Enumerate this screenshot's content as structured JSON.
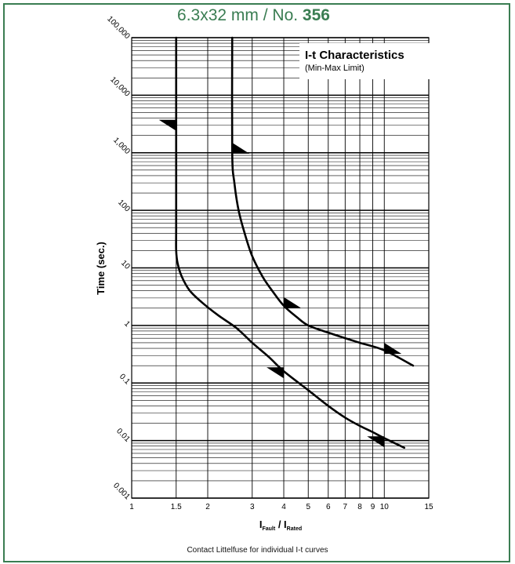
{
  "header": {
    "title_prefix": "6.3x32 mm / No. ",
    "title_number": "356"
  },
  "footer": {
    "note": "Contact Littelfuse for individual I-t curves"
  },
  "colors": {
    "border": "#3a7d52",
    "title": "#3a7d52",
    "ink": "#000000"
  },
  "chart_data": {
    "type": "line",
    "title": "I-t Characteristics",
    "subtitle": "(Min-Max Limit)",
    "xlabel": "I_Fault / I_Rated",
    "xlabel_main": "I",
    "xlabel_sub1": "Fault",
    "xlabel_sep": " / I",
    "xlabel_sub2": "Rated",
    "ylabel": "Time (sec.)",
    "x_scale": "log",
    "y_scale": "log",
    "xlim": [
      1,
      15
    ],
    "ylim": [
      0.001,
      100000
    ],
    "x_ticks": [
      {
        "value": 1,
        "label": "1"
      },
      {
        "value": 1.5,
        "label": "1.5"
      },
      {
        "value": 2,
        "label": "2"
      },
      {
        "value": 3,
        "label": "3"
      },
      {
        "value": 4,
        "label": "4"
      },
      {
        "value": 5,
        "label": "5"
      },
      {
        "value": 6,
        "label": "6"
      },
      {
        "value": 7,
        "label": "7"
      },
      {
        "value": 8,
        "label": "8"
      },
      {
        "value": 9,
        "label": "9"
      },
      {
        "value": 10,
        "label": "10"
      },
      {
        "value": 15,
        "label": "15"
      }
    ],
    "y_ticks": [
      {
        "value": 0.001,
        "label": "0.001"
      },
      {
        "value": 0.01,
        "label": "0.01"
      },
      {
        "value": 0.1,
        "label": "0.1"
      },
      {
        "value": 1,
        "label": "1"
      },
      {
        "value": 10,
        "label": "10"
      },
      {
        "value": 100,
        "label": "100"
      },
      {
        "value": 1000,
        "label": "1,000"
      },
      {
        "value": 10000,
        "label": "10,000"
      },
      {
        "value": 100000,
        "label": "100,000"
      }
    ],
    "grid": true,
    "legend_position": "top-right",
    "series": [
      {
        "points": [
          {
            "x": 1.5,
            "y": 100000
          },
          {
            "x": 1.5,
            "y": 1000
          },
          {
            "x": 1.5,
            "y": 50
          },
          {
            "x": 1.5,
            "y": 20
          },
          {
            "x": 1.52,
            "y": 12
          },
          {
            "x": 1.58,
            "y": 7
          },
          {
            "x": 1.7,
            "y": 4
          },
          {
            "x": 1.9,
            "y": 2.5
          },
          {
            "x": 2.2,
            "y": 1.5
          },
          {
            "x": 2.6,
            "y": 0.9
          },
          {
            "x": 3,
            "y": 0.5
          },
          {
            "x": 3.5,
            "y": 0.28
          },
          {
            "x": 4,
            "y": 0.16
          },
          {
            "x": 5,
            "y": 0.075
          },
          {
            "x": 6,
            "y": 0.04
          },
          {
            "x": 7,
            "y": 0.025
          },
          {
            "x": 8,
            "y": 0.018
          },
          {
            "x": 9,
            "y": 0.014
          },
          {
            "x": 10,
            "y": 0.011
          },
          {
            "x": 12,
            "y": 0.0075
          }
        ]
      },
      {
        "points": [
          {
            "x": 2.5,
            "y": 100000
          },
          {
            "x": 2.5,
            "y": 1000
          },
          {
            "x": 2.55,
            "y": 300
          },
          {
            "x": 2.65,
            "y": 100
          },
          {
            "x": 2.8,
            "y": 40
          },
          {
            "x": 3,
            "y": 16
          },
          {
            "x": 3.3,
            "y": 7
          },
          {
            "x": 3.6,
            "y": 4
          },
          {
            "x": 4,
            "y": 2.2
          },
          {
            "x": 4.5,
            "y": 1.4
          },
          {
            "x": 5,
            "y": 1
          },
          {
            "x": 6,
            "y": 0.75
          },
          {
            "x": 7,
            "y": 0.6
          },
          {
            "x": 8,
            "y": 0.5
          },
          {
            "x": 10,
            "y": 0.37
          },
          {
            "x": 13,
            "y": 0.2
          }
        ]
      }
    ],
    "markers": [
      {
        "x": 1.5,
        "y": 3000,
        "side": "left"
      },
      {
        "x": 2.5,
        "y": 1200,
        "side": "right"
      },
      {
        "x": 4,
        "y": 2.5,
        "side": "right"
      },
      {
        "x": 10,
        "y": 0.4,
        "side": "right"
      },
      {
        "x": 4,
        "y": 0.15,
        "side": "left"
      },
      {
        "x": 10,
        "y": 0.0095,
        "side": "left"
      }
    ]
  }
}
